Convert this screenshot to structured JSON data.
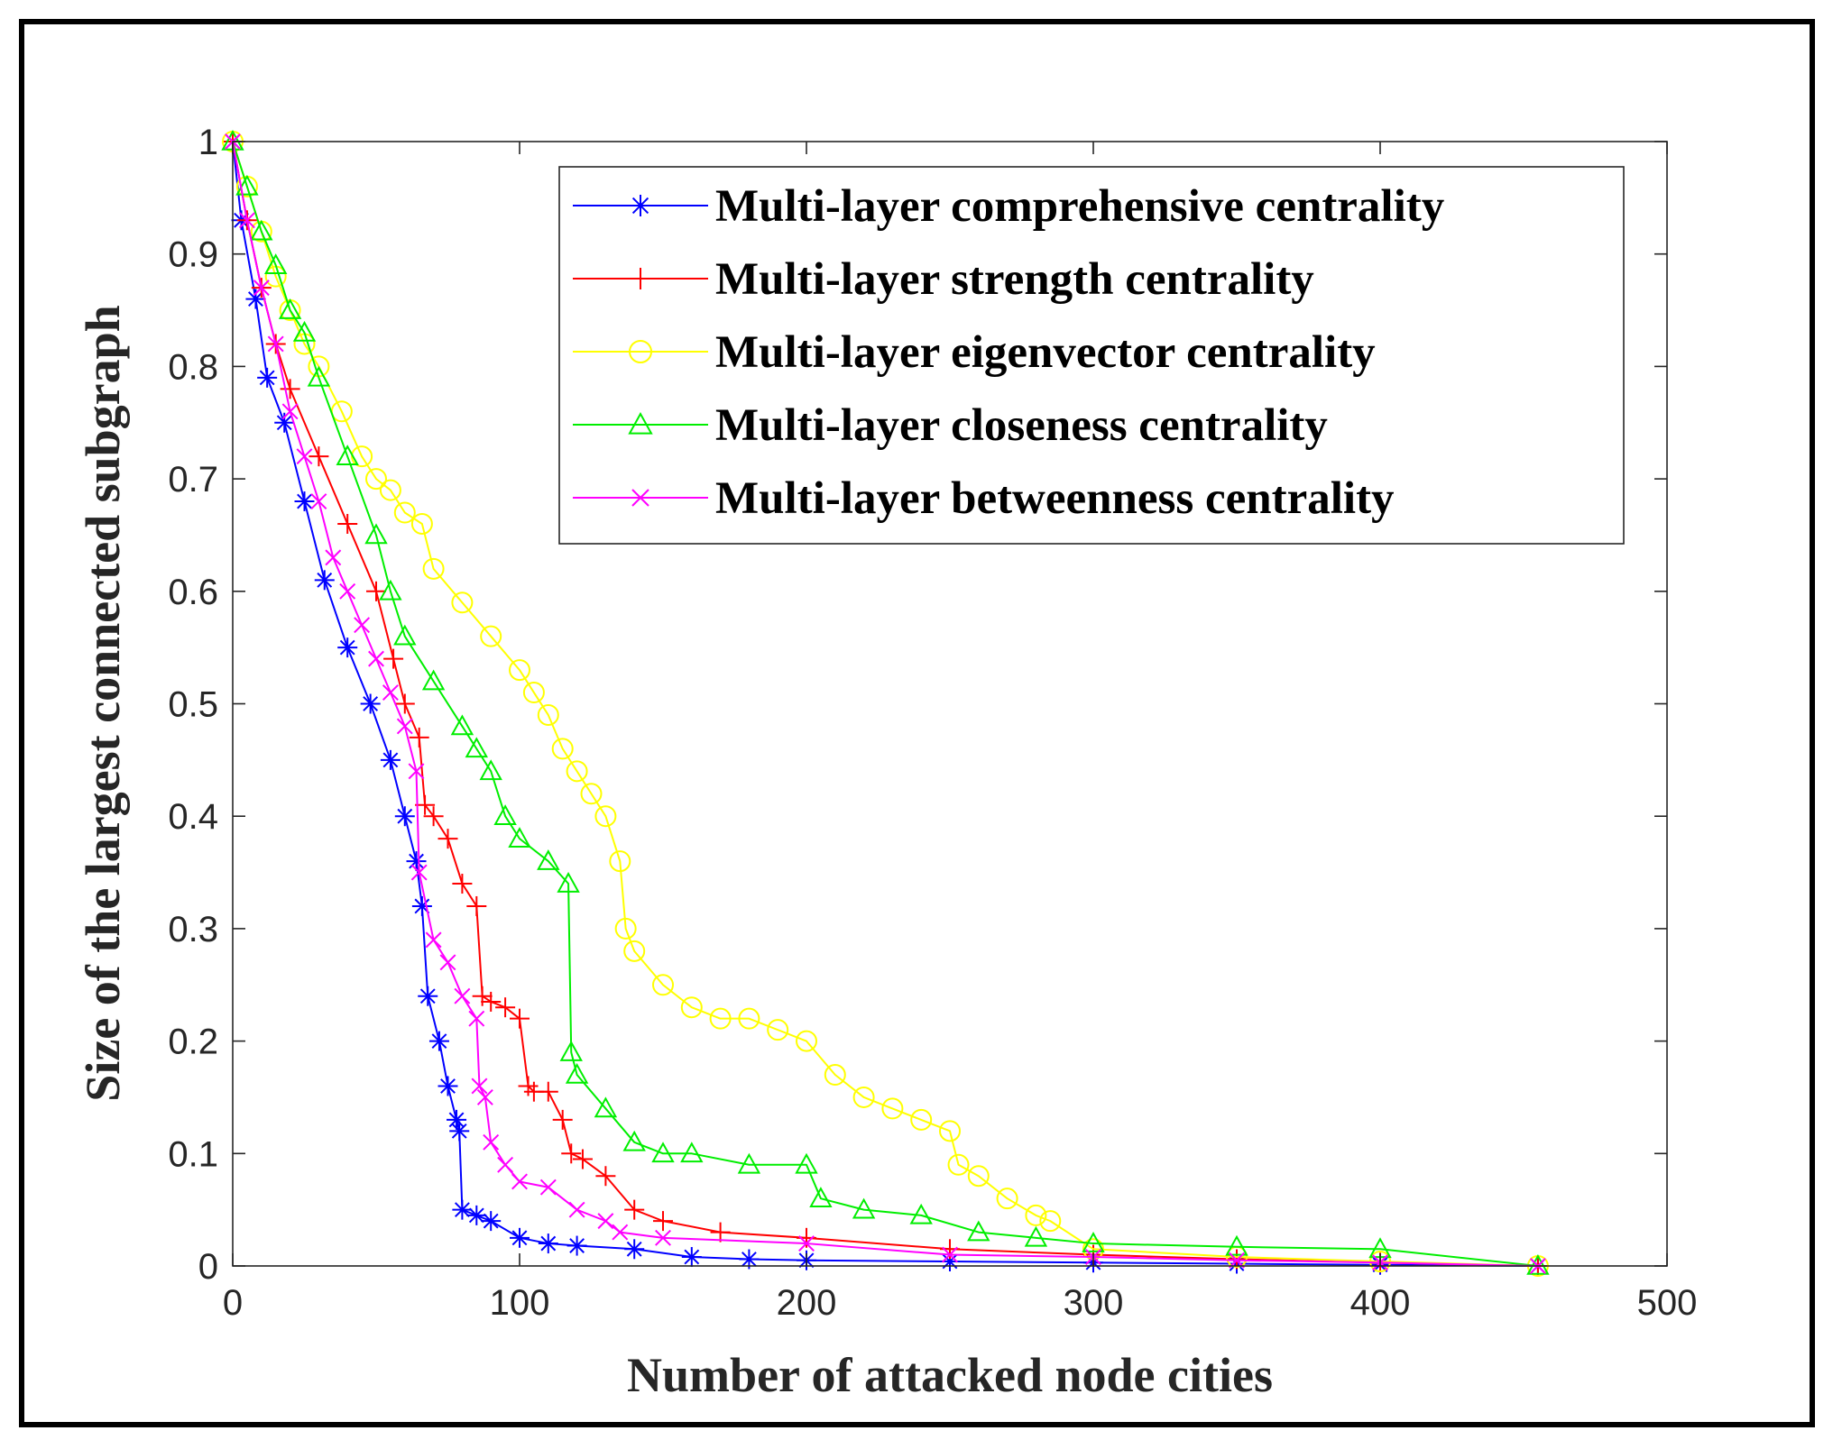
{
  "chart_data": {
    "type": "line",
    "xlabel": "Number of attacked node cities",
    "ylabel": "Size of the largest connected subgraph",
    "xlim": [
      0,
      500
    ],
    "ylim": [
      0,
      1
    ],
    "xticks": [
      0,
      100,
      200,
      300,
      400,
      500
    ],
    "xtick_labels": [
      "0",
      "100",
      "200",
      "300",
      "400",
      "500"
    ],
    "yticks": [
      0,
      0.1,
      0.2,
      0.3,
      0.4,
      0.5,
      0.6,
      0.7,
      0.8,
      0.9,
      1
    ],
    "ytick_labels": [
      "0",
      "0.1",
      "0.2",
      "0.3",
      "0.4",
      "0.5",
      "0.6",
      "0.7",
      "0.8",
      "0.9",
      "1"
    ],
    "grid": false,
    "legend_position": "top-right",
    "series": [
      {
        "name": "Multi-layer comprehensive centrality",
        "color": "#0000ff",
        "marker": "asterisk",
        "x": [
          0,
          3,
          8,
          12,
          18,
          25,
          32,
          40,
          48,
          55,
          60,
          64,
          66,
          68,
          72,
          75,
          78,
          79,
          80,
          85,
          90,
          100,
          110,
          120,
          140,
          160,
          180,
          200,
          250,
          300,
          350,
          400,
          455
        ],
        "y": [
          1.0,
          0.93,
          0.86,
          0.79,
          0.75,
          0.68,
          0.61,
          0.55,
          0.5,
          0.45,
          0.4,
          0.36,
          0.32,
          0.24,
          0.2,
          0.16,
          0.13,
          0.12,
          0.05,
          0.045,
          0.04,
          0.025,
          0.02,
          0.018,
          0.015,
          0.008,
          0.006,
          0.005,
          0.004,
          0.003,
          0.002,
          0.001,
          0.0
        ]
      },
      {
        "name": "Multi-layer strength centrality",
        "color": "#ff0000",
        "marker": "plus",
        "x": [
          0,
          5,
          10,
          15,
          20,
          30,
          40,
          50,
          56,
          60,
          65,
          67,
          70,
          75,
          80,
          85,
          87,
          90,
          95,
          100,
          103,
          105,
          110,
          115,
          118,
          122,
          130,
          140,
          150,
          170,
          200,
          250,
          300,
          350,
          400,
          455
        ],
        "y": [
          1.0,
          0.93,
          0.87,
          0.82,
          0.78,
          0.72,
          0.66,
          0.6,
          0.54,
          0.5,
          0.47,
          0.41,
          0.4,
          0.38,
          0.34,
          0.32,
          0.24,
          0.235,
          0.23,
          0.22,
          0.16,
          0.155,
          0.155,
          0.13,
          0.1,
          0.095,
          0.08,
          0.05,
          0.04,
          0.03,
          0.025,
          0.015,
          0.01,
          0.006,
          0.003,
          0.0
        ]
      },
      {
        "name": "Multi-layer eigenvector centrality",
        "color": "#ffff00",
        "marker": "circle",
        "x": [
          0,
          5,
          10,
          15,
          20,
          25,
          30,
          38,
          45,
          50,
          55,
          60,
          66,
          70,
          80,
          90,
          100,
          105,
          110,
          115,
          120,
          125,
          130,
          135,
          137,
          140,
          150,
          160,
          170,
          180,
          190,
          200,
          210,
          220,
          230,
          240,
          250,
          253,
          260,
          270,
          280,
          285,
          300,
          350,
          400,
          455
        ],
        "y": [
          1.0,
          0.96,
          0.92,
          0.88,
          0.85,
          0.82,
          0.8,
          0.76,
          0.72,
          0.7,
          0.69,
          0.67,
          0.66,
          0.62,
          0.59,
          0.56,
          0.53,
          0.51,
          0.49,
          0.46,
          0.44,
          0.42,
          0.4,
          0.36,
          0.3,
          0.28,
          0.25,
          0.23,
          0.22,
          0.22,
          0.21,
          0.2,
          0.17,
          0.15,
          0.14,
          0.13,
          0.12,
          0.09,
          0.08,
          0.06,
          0.045,
          0.04,
          0.015,
          0.008,
          0.004,
          0.0
        ]
      },
      {
        "name": "Multi-layer closeness centrality",
        "color": "#00ee00",
        "marker": "triangle",
        "x": [
          0,
          5,
          10,
          15,
          20,
          25,
          30,
          40,
          50,
          55,
          60,
          70,
          80,
          85,
          90,
          95,
          100,
          110,
          117,
          118,
          120,
          130,
          140,
          150,
          160,
          180,
          200,
          205,
          220,
          240,
          260,
          280,
          300,
          350,
          400,
          455
        ],
        "y": [
          1.0,
          0.96,
          0.92,
          0.89,
          0.85,
          0.83,
          0.79,
          0.72,
          0.65,
          0.6,
          0.56,
          0.52,
          0.48,
          0.46,
          0.44,
          0.4,
          0.38,
          0.36,
          0.34,
          0.19,
          0.17,
          0.14,
          0.11,
          0.1,
          0.1,
          0.09,
          0.09,
          0.06,
          0.05,
          0.045,
          0.03,
          0.025,
          0.02,
          0.017,
          0.015,
          0.0
        ]
      },
      {
        "name": "Multi-layer betweenness centrality",
        "color": "#ff00ff",
        "marker": "cross",
        "x": [
          0,
          5,
          10,
          15,
          20,
          25,
          30,
          35,
          40,
          45,
          50,
          55,
          60,
          64,
          65,
          70,
          75,
          80,
          85,
          86,
          88,
          90,
          95,
          100,
          110,
          120,
          130,
          135,
          150,
          200,
          250,
          300,
          350,
          400,
          455
        ],
        "y": [
          1.0,
          0.93,
          0.87,
          0.82,
          0.76,
          0.72,
          0.68,
          0.63,
          0.6,
          0.57,
          0.54,
          0.51,
          0.48,
          0.44,
          0.35,
          0.29,
          0.27,
          0.24,
          0.22,
          0.16,
          0.15,
          0.11,
          0.09,
          0.075,
          0.07,
          0.05,
          0.04,
          0.03,
          0.025,
          0.02,
          0.01,
          0.008,
          0.005,
          0.003,
          0.0
        ]
      }
    ]
  }
}
